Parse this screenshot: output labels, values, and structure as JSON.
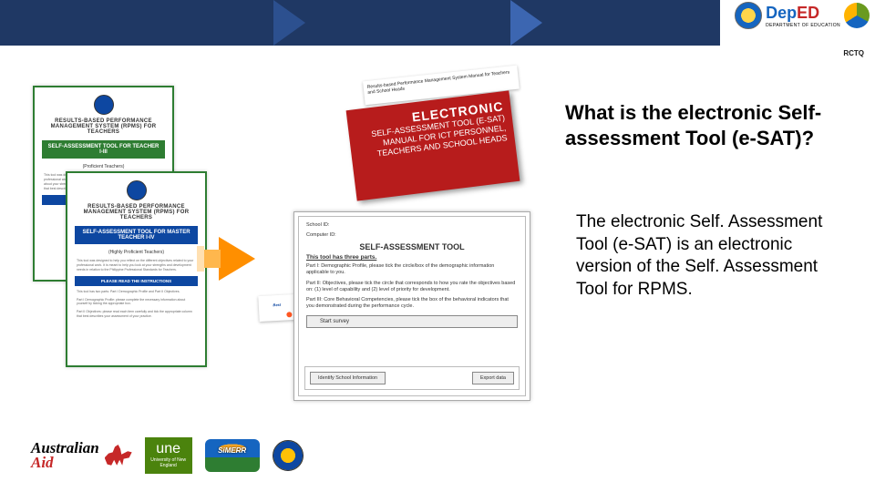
{
  "header": {
    "brand_dep": "Dep",
    "brand_ed": "ED",
    "brand_sub": "DEPARTMENT OF EDUCATION",
    "rctq": "RCTQ"
  },
  "title": "What is the electronic Self-assessment Tool (e-SAT)?",
  "body": "The electronic Self. Assessment Tool (e-SAT) is an electronic version of the Self. Assessment Tool for RPMS.",
  "doc_a": {
    "h1": "RESULTS-BASED PERFORMANCE MANAGEMENT SYSTEM (RPMS) FOR TEACHERS",
    "band": "SELF-ASSESSMENT TOOL FOR TEACHER I-III",
    "sub": "(Proficient Teachers)",
    "para": "This tool was designed to help you reflect on the different objectives related to your professional work. Please read the objectives and indicators which will guide you about your strengths and development needs. Mark only one appropriate column that best describes your current level.",
    "instr": "PLEASE READ THE INSTRUCTIONS"
  },
  "doc_b": {
    "h1": "RESULTS-BASED PERFORMANCE MANAGEMENT SYSTEM (RPMS) FOR TEACHERS",
    "band": "SELF-ASSESSMENT TOOL FOR MASTER TEACHER I-IV",
    "sub": "(Highly Proficient Teachers)",
    "para1": "This tool was designed to help you reflect on the different objectives related to your professional work. It is meant to help you look at your strengths and development needs in relation to the Philippine Professional Standards for Teachers.",
    "instr": "PLEASE READ THE INSTRUCTIONS",
    "para2": "This tool has two parts: Part I Demographic Profile and Part II Objectives.",
    "para3": "Part I Demographic Profile: please complete the necessary information about yourself by ticking the appropriate box.",
    "para4": "Part II Objectives: please read each item carefully and tick the appropriate column that best describes your assessment of your practice."
  },
  "book": {
    "page1": "Results-based Performance Management System Manual for Teachers and School Heads",
    "t1": "ELECTRONIC",
    "t2a": "SELF-ASSESSMENT TOOL (E-SAT)",
    "t2b": "MANUAL FOR ICT PERSONNEL,",
    "t2c": "TEACHERS AND SCHOOL HEADS"
  },
  "sat": {
    "meta1": "School ID:",
    "meta2": "Computer ID:",
    "title": "SELF-ASSESSMENT TOOL",
    "u1": "This tool has three parts.",
    "p1": "Part I: Demographic Profile, please tick the circle/box of the demographic information applicable to you.",
    "p2": "Part II: Objectives, please tick the circle that corresponds to how you rate the objectives based on: (1) level of capability and (2) level of priority for development.",
    "p3": "Part III: Core Behavioral Competencies, please tick the box of the behavioral indicators that you demonstrated during the performance cycle.",
    "btn_start": "Start survey",
    "btn_left": "Identify School Information",
    "btn_right": "Export data"
  },
  "small_card": "Best",
  "footer": {
    "aus1": "Australian",
    "aus2": "Aid",
    "une_big": "une",
    "une_small": "University of New England",
    "simerr": "SiMERR"
  },
  "colors": {
    "header_blue": "#1f3864",
    "accent_green": "#2e7d32",
    "accent_red": "#b71c1c",
    "accent_orange": "#ff8f00"
  }
}
